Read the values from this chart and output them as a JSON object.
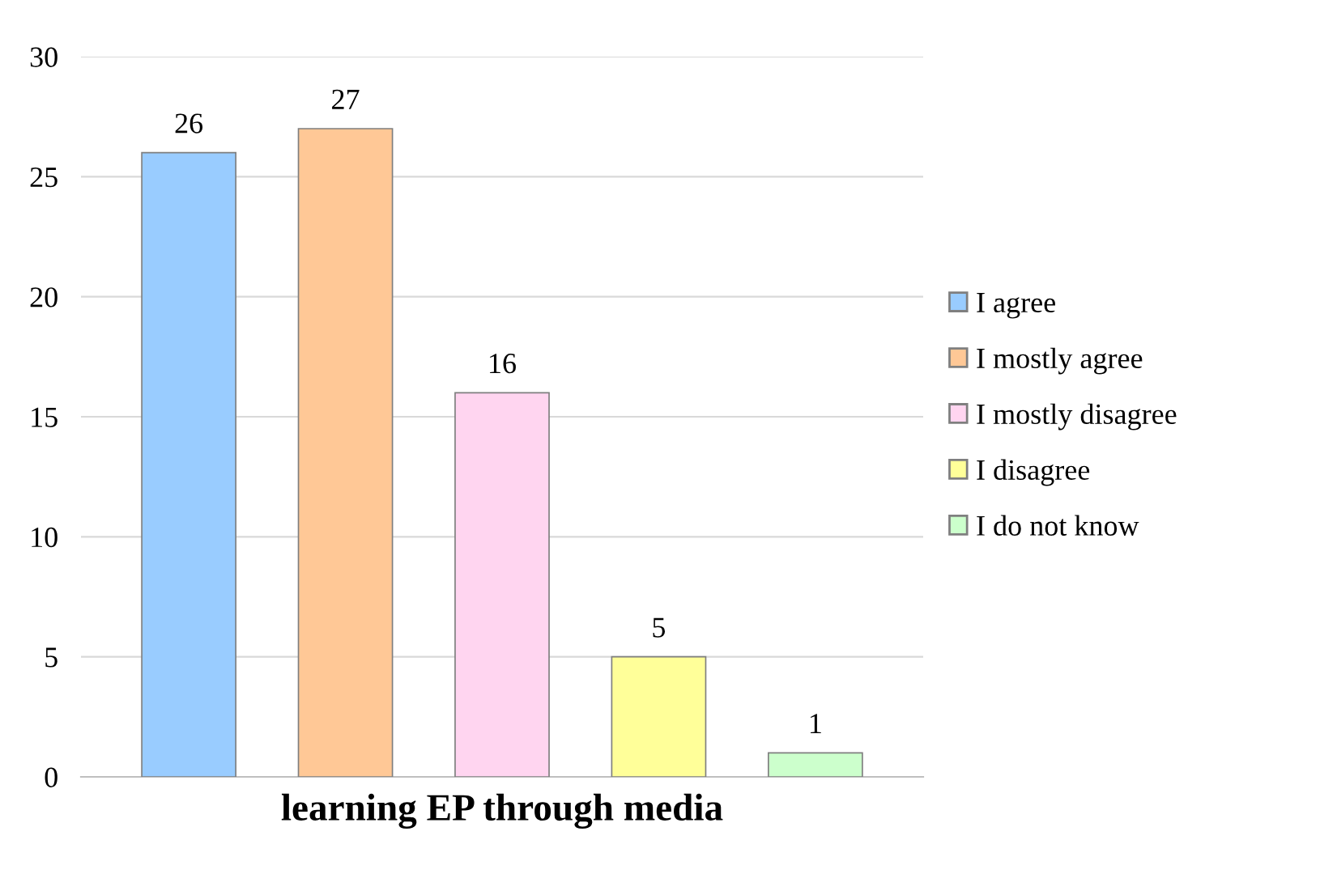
{
  "chart_data": {
    "type": "bar",
    "xlabel": "learning EP through media",
    "categories": [
      null
    ],
    "series": [
      {
        "name": "I agree",
        "color": "#99ccff",
        "values": [
          26
        ]
      },
      {
        "name": "I mostly agree",
        "color": "#ffc896",
        "values": [
          27
        ]
      },
      {
        "name": "I mostly disagree",
        "color": "#ffd5f0",
        "values": [
          16
        ]
      },
      {
        "name": "I disagree",
        "color": "#ffff99",
        "values": [
          5
        ]
      },
      {
        "name": "I do not know",
        "color": "#ccffcc",
        "values": [
          1
        ]
      }
    ],
    "ylim": [
      0,
      30
    ],
    "yticks": [
      0,
      5,
      10,
      15,
      20,
      25,
      30
    ],
    "grid": "y",
    "legend": "right",
    "data_labels": true
  }
}
